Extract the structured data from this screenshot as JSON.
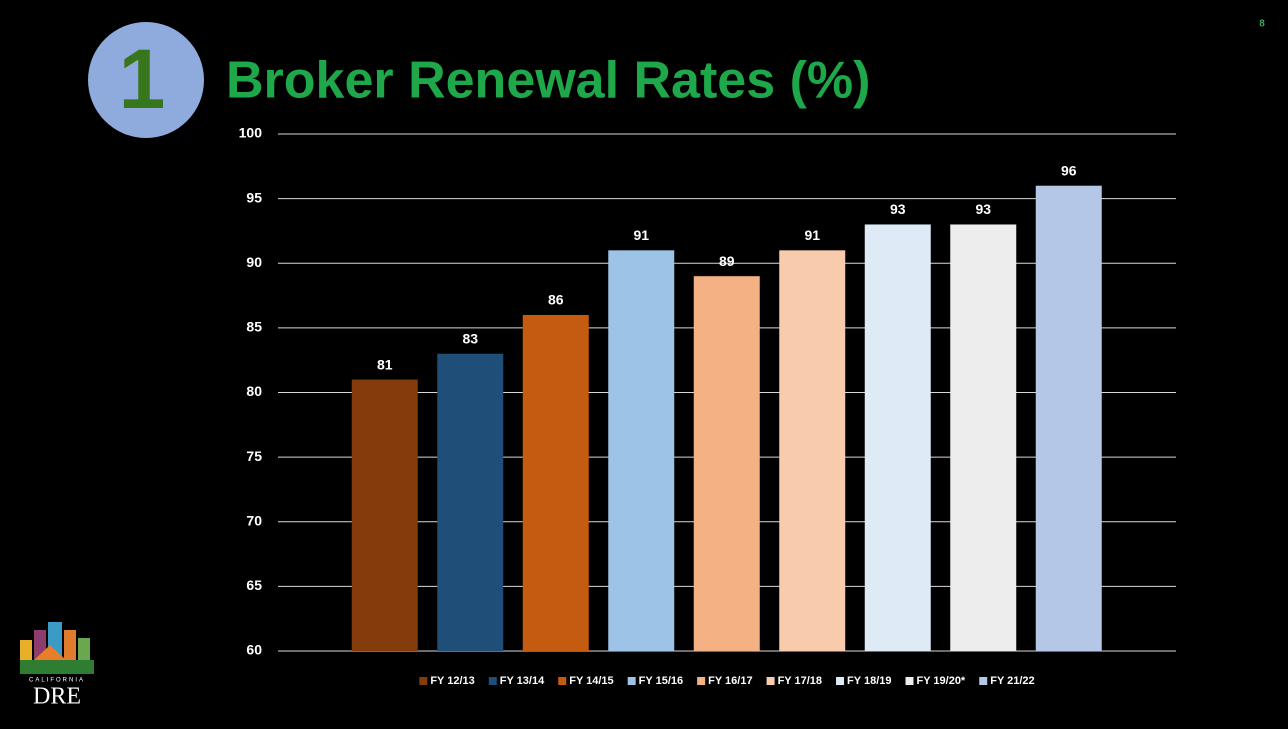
{
  "page_number": "8",
  "badge": "1",
  "logo": {
    "state": "CALIFORNIA",
    "name": "DRE"
  },
  "chart_data": {
    "type": "bar",
    "title": "Broker Renewal Rates (%)",
    "categories": [
      "FY 12/13",
      "FY 13/14",
      "FY 14/15",
      "FY 15/16",
      "FY 16/17",
      "FY 17/18",
      "FY 18/19",
      "FY 19/20*",
      "FY 21/22"
    ],
    "values": [
      81,
      83,
      86,
      91,
      89,
      91,
      93,
      93,
      96
    ],
    "colors": [
      "#843c0c",
      "#1f4e79",
      "#c55a11",
      "#9dc3e6",
      "#f4b183",
      "#f8cbad",
      "#deebf7",
      "#ededed",
      "#b4c7e7"
    ],
    "ylim": [
      60,
      100
    ],
    "yticks": [
      60,
      65,
      70,
      75,
      80,
      85,
      90,
      95,
      100
    ],
    "grid": true,
    "legend": "bottom"
  }
}
